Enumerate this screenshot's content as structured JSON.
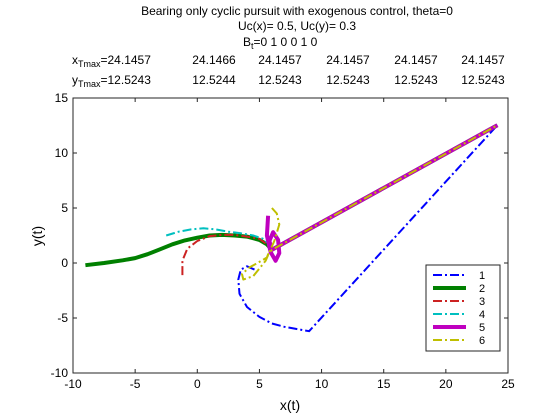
{
  "title_lines": [
    "Bearing only cyclic pursuit with exogenous control, theta=0",
    "Uc(x)= 0.5, Uc(y)= 0.3"
  ],
  "b_line": {
    "base": "B",
    "sub": "t",
    "values": "=0  1  0  0  1  0"
  },
  "xmax_row": {
    "base": "x",
    "sub": "Tmax",
    "values": [
      "=24.1457",
      "24.1466",
      "24.1457",
      "24.1457",
      "24.1457",
      "24.1457"
    ]
  },
  "ymax_row": {
    "base": "y",
    "sub": "Tmax",
    "values": [
      "=12.5243",
      "12.5244",
      "12.5243",
      "12.5243",
      "12.5243",
      "12.5243"
    ]
  },
  "chart_data": {
    "type": "line",
    "xlabel": "x(t)",
    "ylabel": "y(t)",
    "xlim": [
      -10,
      25
    ],
    "ylim": [
      -10,
      15
    ],
    "xticks": [
      -10,
      -5,
      0,
      5,
      10,
      15,
      20,
      25
    ],
    "yticks": [
      -10,
      -5,
      0,
      5,
      10,
      15
    ],
    "grid": false,
    "legend_position": "bottom-right",
    "series": [
      {
        "name": "1",
        "color": "#0000ff",
        "dash": "dashdot",
        "width": 2,
        "x": [
          4.6,
          4.0,
          3.5,
          3.3,
          3.4,
          4.0,
          5.0,
          6.0,
          7.0,
          8.0,
          9.0
        ],
        "y": [
          -0.6,
          -0.3,
          -0.6,
          -1.5,
          -2.8,
          -4.0,
          -4.9,
          -5.5,
          -5.8,
          -6.0,
          -6.2
        ]
      },
      {
        "name": "2",
        "color": "#008000",
        "dash": "solid",
        "width": 4,
        "x": [
          -9.0,
          -7.5,
          -6.0,
          -5.0,
          -4.0,
          -3.0,
          -2.0,
          -1.0,
          0.0,
          1.0,
          2.0,
          3.0,
          4.0,
          5.0,
          5.6,
          6.0
        ],
        "y": [
          -0.2,
          0.0,
          0.25,
          0.45,
          0.8,
          1.25,
          1.7,
          2.05,
          2.3,
          2.5,
          2.55,
          2.5,
          2.4,
          2.1,
          1.7,
          1.2
        ]
      },
      {
        "name": "3",
        "color": "#cc2222",
        "dash": "dashdot",
        "width": 2,
        "x": [
          -1.2,
          -1.2,
          -0.8,
          0.0,
          1.0,
          2.0,
          3.0,
          4.0,
          5.0,
          5.6,
          6.0
        ],
        "y": [
          -1.1,
          0.2,
          1.3,
          2.0,
          2.45,
          2.55,
          2.55,
          2.4,
          2.2,
          1.7,
          1.2
        ]
      },
      {
        "name": "4",
        "color": "#00bfbf",
        "dash": "dashdot",
        "width": 2,
        "x": [
          -2.5,
          -1.5,
          -0.5,
          0.5,
          1.5,
          2.5,
          3.5,
          4.5,
          5.3,
          5.8,
          6.0
        ],
        "y": [
          2.5,
          2.85,
          3.05,
          3.15,
          3.05,
          2.85,
          2.7,
          2.5,
          2.2,
          1.7,
          1.2
        ]
      },
      {
        "name": "5",
        "color": "#bf00bf",
        "dash": "solid",
        "width": 4,
        "x": [
          5.7,
          5.6,
          5.9,
          6.3,
          6.6,
          6.5,
          6.1,
          5.8,
          6.0
        ],
        "y": [
          4.3,
          2.5,
          1.0,
          0.2,
          0.9,
          2.1,
          2.8,
          2.0,
          1.2
        ]
      },
      {
        "name": "6",
        "color": "#bfbf00",
        "dash": "dashdot",
        "width": 2,
        "x": [
          6.0,
          6.4,
          6.6,
          6.2,
          5.5,
          4.5,
          3.7,
          3.6,
          4.2,
          5.0,
          5.6,
          5.7,
          5.9,
          6.0
        ],
        "y": [
          5.0,
          4.5,
          3.5,
          2.0,
          0.2,
          -1.2,
          -1.5,
          -1.0,
          -0.4,
          0.1,
          0.5,
          0.8,
          1.0,
          1.2
        ]
      }
    ],
    "shared_tail": {
      "x": [
        6.0,
        24.1457
      ],
      "y": [
        1.2,
        12.5243
      ]
    }
  }
}
